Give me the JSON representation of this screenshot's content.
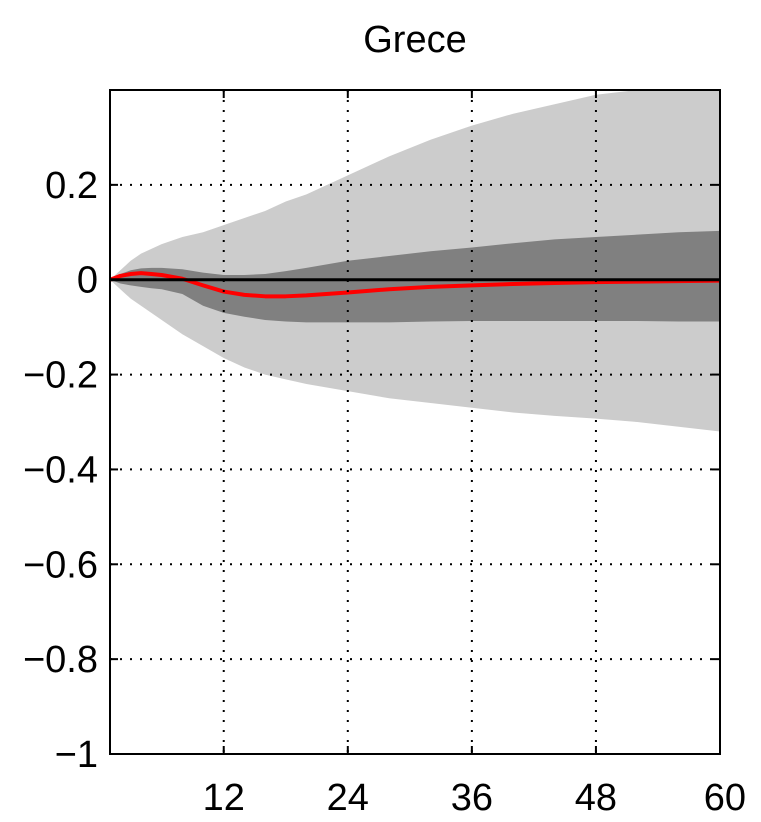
{
  "chart_data": {
    "type": "area",
    "title": "Grece",
    "xlabel": "",
    "ylabel": "",
    "xlim": [
      1,
      60
    ],
    "ylim": [
      -1,
      0.4
    ],
    "xticks": [
      12,
      24,
      36,
      48,
      60
    ],
    "xtick_labels": [
      "12",
      "24",
      "36",
      "48",
      "60"
    ],
    "yticks": [
      0.2,
      0,
      -0.2,
      -0.4,
      -0.6,
      -0.8,
      -1
    ],
    "ytick_labels": [
      "0.2",
      "0",
      "−0.2",
      "−0.4",
      "−0.6",
      "−0.8",
      "−1"
    ],
    "grid": true,
    "legend": "none",
    "x": [
      1,
      2,
      3,
      4,
      5,
      6,
      8,
      10,
      12,
      14,
      16,
      18,
      20,
      24,
      28,
      32,
      36,
      40,
      44,
      48,
      52,
      56,
      60
    ],
    "series": [
      {
        "role": "outer-band",
        "color": "#cccccc",
        "upper": [
          0.0,
          0.02,
          0.04,
          0.055,
          0.065,
          0.075,
          0.09,
          0.1,
          0.115,
          0.13,
          0.145,
          0.165,
          0.18,
          0.22,
          0.26,
          0.295,
          0.325,
          0.35,
          0.37,
          0.39,
          0.4,
          0.41,
          0.42
        ],
        "lower": [
          0.0,
          -0.02,
          -0.04,
          -0.055,
          -0.07,
          -0.085,
          -0.115,
          -0.14,
          -0.165,
          -0.185,
          -0.2,
          -0.21,
          -0.22,
          -0.235,
          -0.25,
          -0.26,
          -0.27,
          -0.28,
          -0.287,
          -0.293,
          -0.3,
          -0.31,
          -0.32
        ]
      },
      {
        "role": "inner-band",
        "color": "#808080",
        "upper": [
          0.0,
          0.012,
          0.02,
          0.024,
          0.025,
          0.025,
          0.022,
          0.015,
          0.01,
          0.01,
          0.012,
          0.018,
          0.025,
          0.04,
          0.05,
          0.06,
          0.068,
          0.077,
          0.085,
          0.09,
          0.095,
          0.1,
          0.103
        ],
        "lower": [
          0.0,
          -0.008,
          -0.012,
          -0.015,
          -0.018,
          -0.02,
          -0.03,
          -0.055,
          -0.07,
          -0.078,
          -0.085,
          -0.088,
          -0.09,
          -0.09,
          -0.09,
          -0.088,
          -0.087,
          -0.087,
          -0.087,
          -0.087,
          -0.087,
          -0.088,
          -0.088
        ]
      },
      {
        "role": "median",
        "color": "#ff0000",
        "values": [
          0.0,
          0.008,
          0.012,
          0.014,
          0.012,
          0.01,
          0.002,
          -0.012,
          -0.025,
          -0.032,
          -0.035,
          -0.035,
          -0.033,
          -0.027,
          -0.02,
          -0.015,
          -0.012,
          -0.009,
          -0.007,
          -0.005,
          -0.004,
          -0.003,
          -0.002
        ]
      }
    ],
    "zero_line": true
  }
}
